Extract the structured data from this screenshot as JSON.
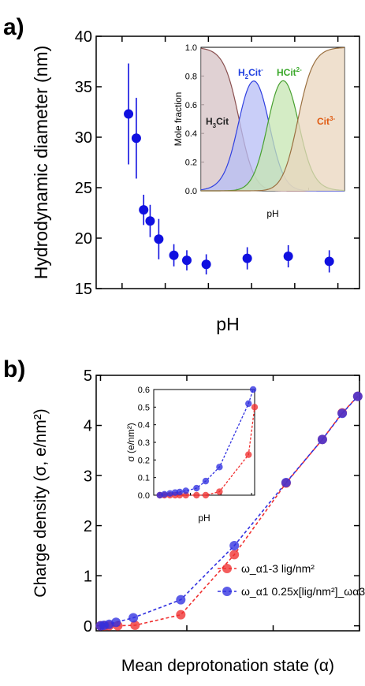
{
  "panels": {
    "a_label": "a)",
    "b_label": "b)"
  },
  "chart_data": [
    {
      "id": "a",
      "type": "scatter",
      "title": "",
      "xlabel": "pH",
      "ylabel": "Hydrodynamic diameter (nm)",
      "xlim": [
        0.4,
        6.5
      ],
      "ylim": [
        15,
        40
      ],
      "xticks": [
        1,
        2,
        3,
        4,
        5,
        6
      ],
      "yticks": [
        15,
        20,
        25,
        30,
        35,
        40
      ],
      "grid": false,
      "color": "#1010e0",
      "points": [
        {
          "x": 1.15,
          "y": 32.3,
          "err": 5.0
        },
        {
          "x": 1.33,
          "y": 29.9,
          "err": 4.0
        },
        {
          "x": 1.5,
          "y": 22.8,
          "err": 1.5
        },
        {
          "x": 1.65,
          "y": 21.7,
          "err": 1.6
        },
        {
          "x": 1.85,
          "y": 19.9,
          "err": 2.0
        },
        {
          "x": 2.2,
          "y": 18.3,
          "err": 1.1
        },
        {
          "x": 2.5,
          "y": 17.8,
          "err": 1.0
        },
        {
          "x": 2.95,
          "y": 17.4,
          "err": 1.0
        },
        {
          "x": 3.9,
          "y": 18.0,
          "err": 1.1
        },
        {
          "x": 4.85,
          "y": 18.2,
          "err": 1.1
        },
        {
          "x": 5.8,
          "y": 17.7,
          "err": 1.1
        }
      ]
    },
    {
      "id": "a_inset",
      "type": "area",
      "title": "",
      "xlabel": "pH",
      "ylabel": "Mole fraction",
      "xlim": [
        1,
        9
      ],
      "ylim": [
        0,
        1
      ],
      "xticks": [
        1,
        3,
        5,
        7,
        9
      ],
      "yticks": [
        0.0,
        0.2,
        0.4,
        0.6,
        0.8,
        1.0
      ],
      "pKa": [
        3.13,
        4.76,
        6.4
      ],
      "series": [
        {
          "name": "H3Cit",
          "fill": "#d6c2c4",
          "stroke": "#8a5050",
          "text_color": "#222222"
        },
        {
          "name": "H2Cit-",
          "fill": "#b7bdf5",
          "stroke": "#3040e0",
          "text_color": "#2040e0"
        },
        {
          "name": "HCit2-",
          "fill": "#c6e5b2",
          "stroke": "#48a030",
          "text_color": "#3aa82a"
        },
        {
          "name": "Cit3-",
          "fill": "#e9d5bd",
          "stroke": "#9a7040",
          "text_color": "#e05a10"
        }
      ]
    },
    {
      "id": "b",
      "type": "line",
      "title": "",
      "xlabel": "Mean deprotonation state (α)",
      "ylabel": "Charge density (σ, e/nm²)",
      "xlim": [
        -0.05,
        3.0
      ],
      "ylim": [
        -0.1,
        5
      ],
      "xticks": [
        0,
        1,
        2,
        3
      ],
      "yticks": [
        0,
        1,
        2,
        3,
        4,
        5
      ],
      "grid": false,
      "legend_position": "bottom-right",
      "series": [
        {
          "name": "ω_α1-3 lig/nm²",
          "color": "#f03030",
          "x": [
            0.0,
            0.05,
            0.1,
            0.2,
            0.4,
            0.93,
            1.55,
            2.15,
            2.57,
            2.8,
            2.98
          ],
          "y": [
            0.0,
            0.0,
            0.0,
            0.0,
            0.01,
            0.22,
            1.42,
            2.85,
            3.72,
            4.25,
            4.58
          ]
        },
        {
          "name": "ω_α1 0.25x[lig/nm²]_ωα3",
          "color": "#3030e0",
          "x": [
            0.0,
            0.04,
            0.1,
            0.18,
            0.38,
            0.93,
            1.55,
            2.15,
            2.57,
            2.8,
            2.98
          ],
          "y": [
            0.0,
            0.01,
            0.03,
            0.07,
            0.16,
            0.52,
            1.6,
            2.86,
            3.72,
            4.24,
            4.58
          ]
        }
      ]
    },
    {
      "id": "b_inset",
      "type": "line",
      "title": "",
      "xlabel": "pH",
      "ylabel": "σ (e/nm²)",
      "xlim": [
        0.8,
        4.1
      ],
      "ylim": [
        0,
        0.6
      ],
      "xticks": [
        1,
        2,
        3,
        4
      ],
      "yticks": [
        0.0,
        0.1,
        0.2,
        0.3,
        0.4,
        0.5,
        0.6
      ],
      "series": [
        {
          "name": "red",
          "color": "#f03030",
          "x": [
            1.0,
            1.15,
            1.33,
            1.5,
            1.65,
            1.85,
            2.2,
            2.5,
            2.95,
            3.9,
            4.1
          ],
          "y": [
            0.0,
            0.0,
            0.0,
            0.0,
            0.0,
            0.0,
            0.0,
            0.0,
            0.02,
            0.23,
            0.5
          ]
        },
        {
          "name": "blue",
          "color": "#3030e0",
          "x": [
            1.0,
            1.15,
            1.33,
            1.5,
            1.65,
            1.85,
            2.2,
            2.5,
            2.95,
            3.9,
            4.05
          ],
          "y": [
            0.0,
            0.005,
            0.01,
            0.015,
            0.018,
            0.025,
            0.04,
            0.08,
            0.16,
            0.52,
            0.6
          ]
        }
      ]
    }
  ]
}
